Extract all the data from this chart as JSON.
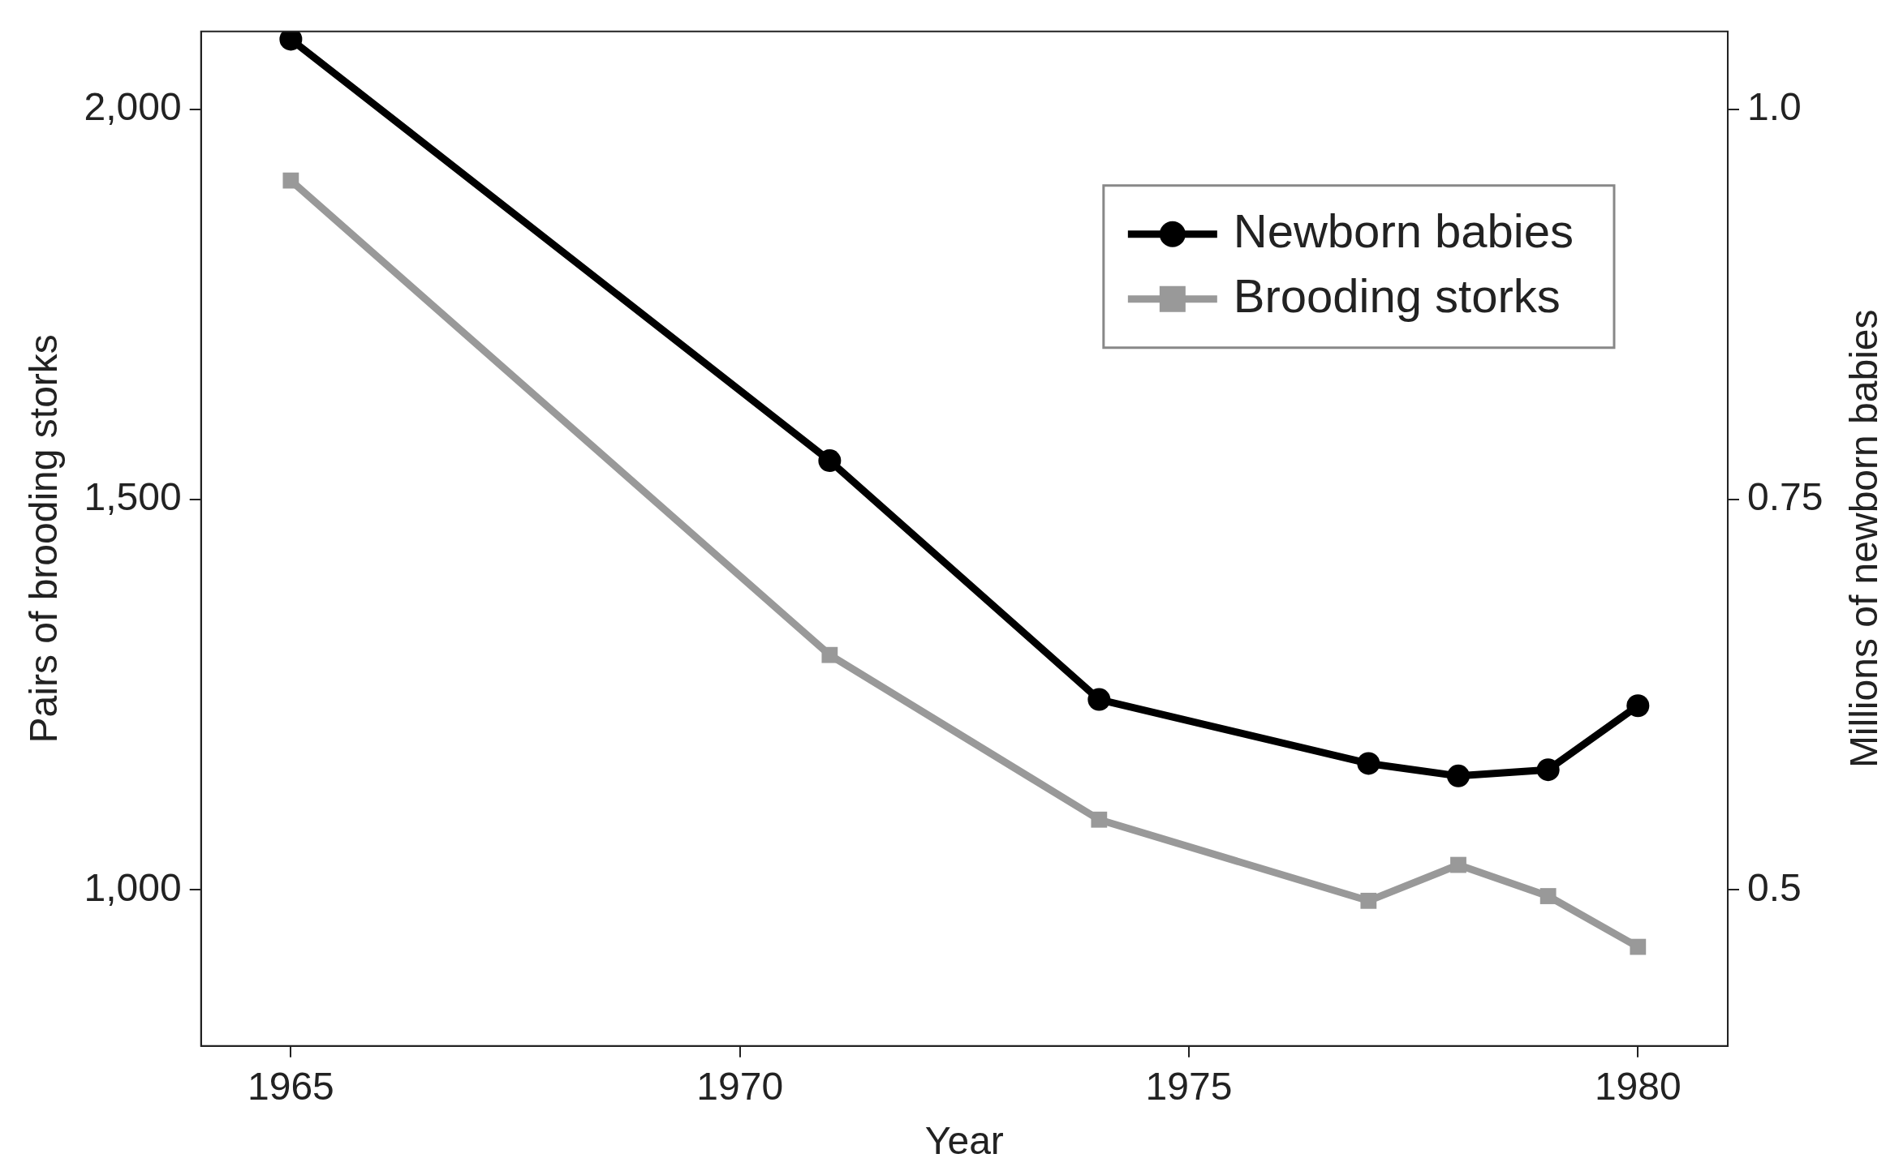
{
  "chart_data": {
    "type": "line",
    "xlabel": "Year",
    "ylabel": "Pairs of brooding storks",
    "y2label": "Millions of newborn babies",
    "series": [
      {
        "name": "Newborn babies",
        "color": "#000000",
        "axis": "y2",
        "marker": "circle",
        "x": [
          1965,
          1971,
          1974,
          1977,
          1978,
          1979,
          1980
        ],
        "values": [
          1.045,
          0.775,
          0.622,
          0.581,
          0.573,
          0.577,
          0.618
        ]
      },
      {
        "name": "Brooding storks",
        "color": "#999999",
        "axis": "y",
        "marker": "square",
        "x": [
          1965,
          1971,
          1974,
          1977,
          1978,
          1979,
          1980
        ],
        "values": [
          1909,
          1301,
          1090,
          986,
          1032,
          992,
          927
        ]
      }
    ],
    "xlim": [
      1964,
      1981
    ],
    "xticks": [
      1965,
      1970,
      1975,
      1980
    ],
    "ylim": [
      800,
      2100
    ],
    "yticks": [
      {
        "value": 1000,
        "label": "1,000"
      },
      {
        "value": 1500,
        "label": "1,500"
      },
      {
        "value": 2000,
        "label": "2,000"
      }
    ],
    "y2lim": [
      0.4,
      1.05
    ],
    "y2ticks": [
      0.5,
      0.75,
      {
        "value": 1.0,
        "label": "1.0"
      }
    ],
    "grid": false,
    "legend": "top right",
    "line_style": "solid"
  }
}
